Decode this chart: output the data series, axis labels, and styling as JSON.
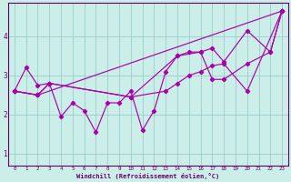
{
  "xlabel": "Windchill (Refroidissement éolien,°C)",
  "bg_color": "#cceee8",
  "line_color": "#aa00aa",
  "grid_color": "#99cccc",
  "axis_color": "#660066",
  "text_color": "#660066",
  "xlim": [
    -0.5,
    23.5
  ],
  "ylim": [
    0.7,
    4.85
  ],
  "yticks": [
    1,
    2,
    3,
    4
  ],
  "xticks": [
    0,
    1,
    2,
    3,
    4,
    5,
    6,
    7,
    8,
    9,
    10,
    11,
    12,
    13,
    14,
    15,
    16,
    17,
    18,
    19,
    20,
    21,
    22,
    23
  ],
  "line1_x": [
    0,
    1,
    2,
    3,
    4,
    5,
    6,
    7,
    8,
    9,
    10,
    11,
    12,
    13,
    14,
    15,
    16,
    17,
    18,
    20,
    22,
    23
  ],
  "line1_y": [
    2.6,
    3.2,
    2.75,
    2.8,
    1.95,
    2.3,
    2.1,
    1.55,
    2.3,
    2.3,
    2.6,
    1.6,
    2.1,
    3.1,
    3.5,
    3.6,
    3.6,
    2.9,
    2.9,
    3.3,
    3.6,
    4.65
  ],
  "line2_x": [
    0,
    2,
    3,
    10,
    13,
    14,
    15,
    16,
    17,
    18,
    20,
    23
  ],
  "line2_y": [
    2.6,
    2.5,
    2.8,
    2.45,
    2.6,
    2.8,
    3.0,
    3.1,
    3.25,
    3.3,
    2.6,
    4.65
  ],
  "line3_x": [
    0,
    2,
    3,
    10,
    14,
    16,
    17,
    18,
    20,
    22,
    23
  ],
  "line3_y": [
    2.6,
    2.5,
    2.8,
    2.45,
    3.5,
    3.6,
    3.7,
    3.35,
    4.15,
    3.6,
    4.65
  ],
  "line4_x": [
    0,
    2,
    23
  ],
  "line4_y": [
    2.6,
    2.5,
    4.65
  ]
}
